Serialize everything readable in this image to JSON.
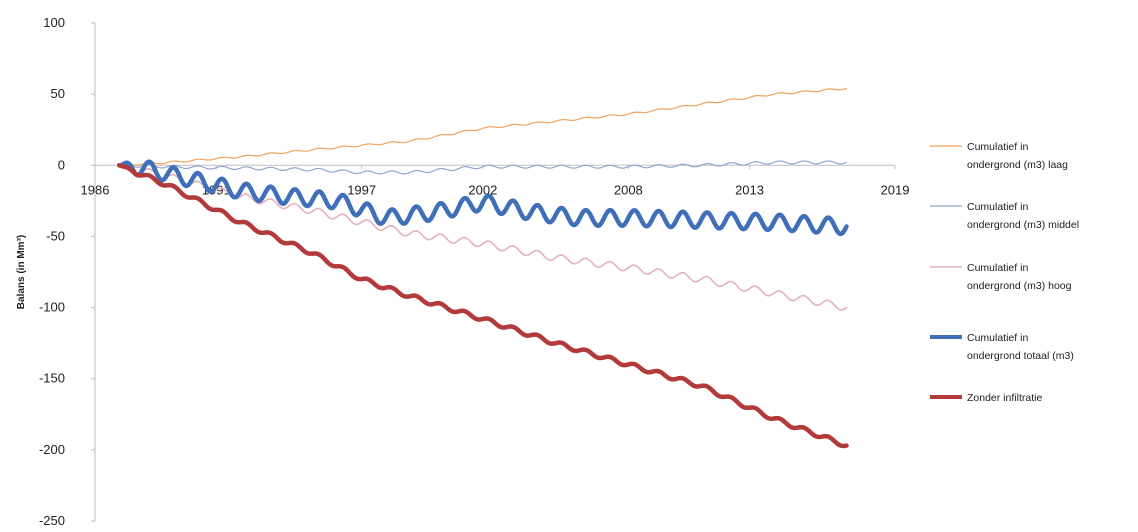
{
  "chart_data": {
    "type": "line",
    "ylabel": "Balans (in Mm³)",
    "xlim": [
      1986,
      2019
    ],
    "ylim": [
      -250,
      100
    ],
    "y_ticks": [
      100,
      50,
      0,
      -50,
      -100,
      -150,
      -200,
      -250
    ],
    "x_ticks": [
      1986,
      1991,
      1997,
      2002,
      2008,
      2013,
      2019
    ],
    "x_tick_labels": [
      "1986",
      "1991",
      "1997",
      "2002",
      "2008",
      "2013",
      "2019"
    ],
    "legend_position": "right",
    "series": [
      {
        "name": "Cumulatief in ondergrond (m3) laag",
        "color": "#f0a35e",
        "x": [
          1987,
          1989,
          1992,
          1995,
          1997,
          1999,
          2002,
          2005,
          2008,
          2011,
          2014,
          2017
        ],
        "values": [
          0,
          2,
          6,
          11,
          14,
          17,
          26,
          31,
          36,
          43,
          50,
          54
        ],
        "wave_amplitude": 0.6
      },
      {
        "name": "Cumulatief in ondergrond (m3) middel",
        "color": "#8fa6cf",
        "x": [
          1987,
          1989,
          1992,
          1995,
          1997,
          1999,
          2002,
          2005,
          2008,
          2011,
          2014,
          2017
        ],
        "values": [
          0,
          -1,
          -2,
          -3,
          -5,
          -5,
          -1,
          -1,
          -1,
          0,
          2,
          2
        ],
        "wave_amplitude": 1.0
      },
      {
        "name": "Cumulatief in ondergrond (m3) hoog",
        "color": "#e4b1bd",
        "x": [
          1987,
          1989,
          1992,
          1995,
          1997,
          1999,
          2002,
          2005,
          2008,
          2011,
          2014,
          2017
        ],
        "values": [
          0,
          -8,
          -22,
          -32,
          -40,
          -48,
          -55,
          -65,
          -72,
          -80,
          -90,
          -100
        ],
        "wave_amplitude": 2.5
      },
      {
        "name": "Cumulatief in ondergrond totaal (m3)",
        "color": "#3f6fb8",
        "x": [
          1987,
          1988,
          1990,
          1992,
          1994,
          1996,
          1998,
          2000,
          2002,
          2004,
          2006,
          2008,
          2010,
          2012,
          2014,
          2017
        ],
        "values": [
          0,
          -2,
          -10,
          -18,
          -22,
          -25,
          -37,
          -33,
          -26,
          -33,
          -37,
          -37,
          -38,
          -39,
          -40,
          -43
        ],
        "wave_amplitude": 5.5
      },
      {
        "name": "Zonder infiltratie",
        "color": "#b33a3a",
        "x": [
          1987,
          1989,
          1992,
          1995,
          1997,
          1999,
          2002,
          2005,
          2008,
          2011,
          2014,
          2017
        ],
        "values": [
          0,
          -14,
          -40,
          -62,
          -80,
          -92,
          -108,
          -125,
          -140,
          -155,
          -178,
          -197
        ],
        "wave_amplitude": 1.5
      }
    ]
  }
}
